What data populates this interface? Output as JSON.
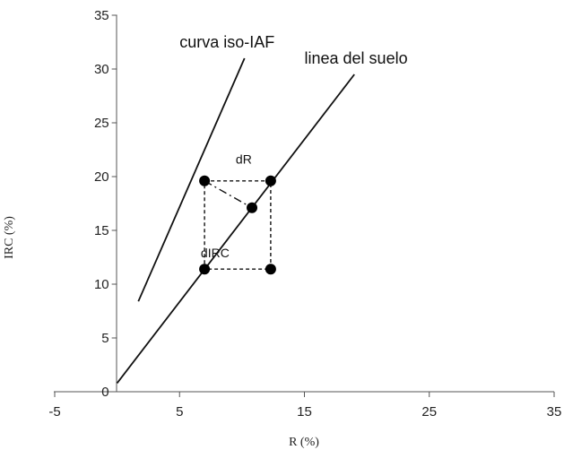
{
  "chart_data": {
    "type": "line",
    "xlabel": "R (%)",
    "ylabel": "IRC (%)",
    "xlim": [
      -5,
      35
    ],
    "ylim": [
      0,
      35
    ],
    "x_ticks": [
      -5,
      5,
      15,
      25,
      35
    ],
    "y_ticks": [
      0,
      5,
      10,
      15,
      20,
      25,
      30,
      35
    ],
    "grid": false,
    "series": [
      {
        "id": "iso",
        "name": "curva iso-IAF",
        "style": "solid",
        "x": [
          1.7,
          10.2
        ],
        "y": [
          8.4,
          31.0
        ]
      },
      {
        "id": "soil",
        "name": "linea del suelo",
        "style": "solid",
        "x": [
          0.0,
          19.0
        ],
        "y": [
          0.8,
          29.5
        ]
      },
      {
        "id": "box",
        "name": "",
        "style": "dashed",
        "x": [
          7.0,
          12.3,
          12.3,
          7.0,
          7.0
        ],
        "y": [
          19.6,
          19.6,
          11.4,
          11.4,
          19.6
        ]
      },
      {
        "id": "diag",
        "name": "",
        "style": "dashdot",
        "x": [
          7.0,
          10.8
        ],
        "y": [
          19.6,
          17.1
        ]
      }
    ],
    "points": [
      {
        "x": 7.0,
        "y": 19.6
      },
      {
        "x": 12.3,
        "y": 19.6
      },
      {
        "x": 10.8,
        "y": 17.1
      },
      {
        "x": 7.0,
        "y": 11.4
      },
      {
        "x": 12.3,
        "y": 11.4
      }
    ],
    "annotations": [
      {
        "id": "curva",
        "text": "curva iso-IAF",
        "x": 5.0,
        "y": 32.0
      },
      {
        "id": "linea",
        "text": "linea del suelo",
        "x": 15.0,
        "y": 30.5
      },
      {
        "id": "dR",
        "text": "dR",
        "x": 9.5,
        "y": 21.2
      },
      {
        "id": "dIRC",
        "text": "dIRC",
        "x": 6.7,
        "y": 12.5
      }
    ]
  }
}
